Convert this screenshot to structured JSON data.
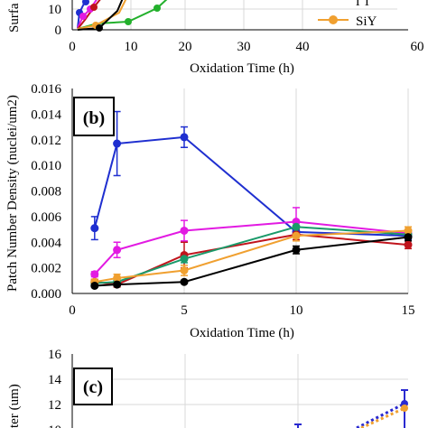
{
  "panel_a": {
    "ylabel_partial": "Surfa",
    "xlabel": "Oxidation Time (h)",
    "xticks": [
      "0",
      "10",
      "20",
      "30",
      "40",
      "60"
    ],
    "yticks": [
      "0",
      "10"
    ],
    "legend_partial": [
      "ГТ",
      "SiY"
    ]
  },
  "chart_data": [
    {
      "type": "line",
      "panel": "b",
      "label": "(b)",
      "xlabel": "Oxidation Time (h)",
      "ylabel": "Patch Number Density (nuclei/um2)",
      "xlim": [
        0,
        15
      ],
      "ylim": [
        0,
        0.016
      ],
      "xticks": [
        "0",
        "5",
        "10",
        "15"
      ],
      "yticks": [
        "0.000",
        "0.002",
        "0.004",
        "0.006",
        "0.008",
        "0.010",
        "0.012",
        "0.014",
        "0.016"
      ],
      "grid": "vertical",
      "series": [
        {
          "color": "#1f2fd0",
          "x": [
            1,
            2,
            5,
            10,
            15
          ],
          "y": [
            0.0051,
            0.0117,
            0.0122,
            0.0048,
            0.0045
          ],
          "err": [
            0.0009,
            0.0025,
            0.0008,
            0.0003,
            0.0003
          ]
        },
        {
          "color": "#e21ae2",
          "x": [
            1,
            2,
            5,
            10,
            15
          ],
          "y": [
            0.0015,
            0.0034,
            0.0049,
            0.0056,
            0.0047
          ],
          "err": [
            0.0002,
            0.0006,
            0.0008,
            0.0011,
            0.0003
          ]
        },
        {
          "color": "#c0141c",
          "x": [
            1,
            2,
            5,
            10,
            15
          ],
          "y": [
            0.0009,
            0.0007,
            0.003,
            0.0046,
            0.0038
          ],
          "err": [
            0.0002,
            0.0002,
            0.001,
            0.0004,
            0.0003
          ]
        },
        {
          "color": "#1a9a6a",
          "x": [
            1,
            2,
            5,
            10,
            15
          ],
          "y": [
            0.0008,
            0.0009,
            0.0027,
            0.0052,
            0.0046
          ],
          "err": [
            0.0002,
            0.0002,
            0.0003,
            0.0004,
            0.0003
          ]
        },
        {
          "color": "#f0a030",
          "x": [
            1,
            2,
            5,
            10,
            15
          ],
          "y": [
            0.0009,
            0.0012,
            0.0018,
            0.0045,
            0.0049
          ],
          "err": [
            0.0002,
            0.0003,
            0.0004,
            0.0004,
            0.0003
          ]
        },
        {
          "color": "#000000",
          "x": [
            1,
            2,
            5,
            10,
            15
          ],
          "y": [
            0.0006,
            0.0007,
            0.0009,
            0.0034,
            0.0044
          ],
          "err": [
            0.0001,
            0.0001,
            0.0001,
            0.0003,
            0.0003
          ]
        }
      ]
    },
    {
      "type": "line",
      "panel": "c",
      "label": "(c)",
      "ylabel_partial": "ter (um)",
      "ylim": [
        10,
        16
      ],
      "yticks": [
        "12",
        "14",
        "16"
      ],
      "partial_tick": "10",
      "series": [
        {
          "color": "#2a2ad0",
          "dash": true,
          "x": [
            15
          ],
          "y": [
            12.2
          ]
        },
        {
          "color": "#f0a030",
          "dash": true,
          "x": [
            15
          ],
          "y": [
            12.0
          ]
        }
      ]
    }
  ]
}
